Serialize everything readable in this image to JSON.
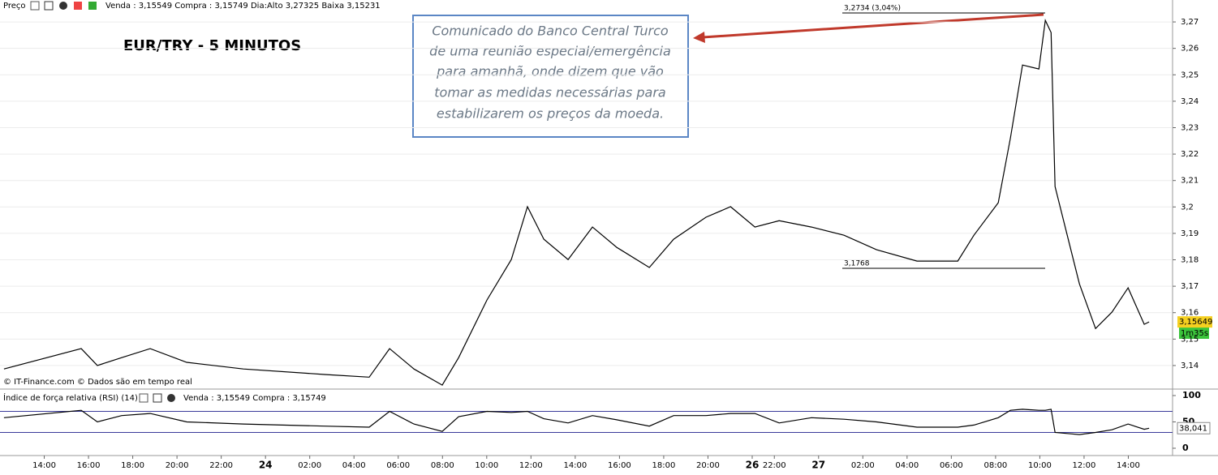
{
  "toolbar": {
    "label": "Preço",
    "quote": "Venda : 3,15549 Compra : 3,15749 Dia:Alto 3,27325 Baixa 3,15231"
  },
  "chart_title": "EUR/TRY - 5 MINUTOS",
  "callout": [
    "Comunicado do Banco Central Turco",
    "de uma reunião especial/emergência",
    "para amanhã, onde dizem que vão",
    "tomar as medidas necessárias para",
    "estabilizarem os preços da moeda."
  ],
  "copyright": "© IT-Finance.com  © Dados são em tempo real",
  "timer": "1m35s",
  "chart_data": [
    {
      "type": "line",
      "color": "#000000",
      "x": [
        0.18,
        3.67,
        4.4,
        5.5,
        6.79,
        8.44,
        11.0,
        14.67,
        16.69,
        17.61,
        18.71,
        19.99,
        20.73,
        22.01,
        23.11,
        23.84,
        24.58,
        25.68,
        26.78,
        27.88,
        29.35,
        30.45,
        31.91,
        33.02,
        34.12,
        35.22,
        36.68,
        38.15,
        39.62,
        41.45,
        43.29,
        44.02,
        45.12,
        45.67,
        46.22,
        46.96,
        47.25,
        47.51,
        47.69,
        48.24,
        48.79,
        49.52,
        50.26,
        50.99,
        51.72,
        51.94
      ],
      "values": [
        3.1387,
        3.1464,
        3.14,
        3.143,
        3.1464,
        3.1412,
        3.1387,
        3.1366,
        3.1356,
        3.1464,
        3.1387,
        3.1326,
        3.143,
        3.1648,
        3.1801,
        3.2001,
        3.1878,
        3.1801,
        3.1924,
        3.1847,
        3.1771,
        3.1878,
        3.1961,
        3.2001,
        3.1924,
        3.1948,
        3.1924,
        3.1893,
        3.1838,
        3.1795,
        3.1795,
        3.1893,
        3.2016,
        3.2261,
        3.2537,
        3.2522,
        3.2706,
        3.266,
        3.2077,
        3.1893,
        3.1709,
        3.154,
        3.1602,
        3.1694,
        3.1556,
        3.1565
      ],
      "xlim": [
        0,
        53
      ],
      "xticks": [
        {
          "value": 2,
          "label": "14:00"
        },
        {
          "value": 4,
          "label": "16:00"
        },
        {
          "value": 6,
          "label": "18:00"
        },
        {
          "value": 8,
          "label": "20:00"
        },
        {
          "value": 10,
          "label": "22:00"
        },
        {
          "value": 12,
          "label": "24"
        },
        {
          "value": 14,
          "label": "02:00"
        },
        {
          "value": 16,
          "label": "04:00"
        },
        {
          "value": 18,
          "label": "06:00"
        },
        {
          "value": 20,
          "label": "08:00"
        },
        {
          "value": 22,
          "label": "10:00"
        },
        {
          "value": 24,
          "label": "12:00"
        },
        {
          "value": 26,
          "label": "14:00"
        },
        {
          "value": 28,
          "label": "16:00"
        },
        {
          "value": 30,
          "label": "18:00"
        },
        {
          "value": 32,
          "label": "20:00"
        },
        {
          "value": 34,
          "label": "26"
        },
        {
          "value": 35,
          "label": "22:00"
        },
        {
          "value": 37,
          "label": "27"
        },
        {
          "value": 39,
          "label": "02:00"
        },
        {
          "value": 41,
          "label": "04:00"
        },
        {
          "value": 43,
          "label": "06:00"
        },
        {
          "value": 45,
          "label": "08:00"
        },
        {
          "value": 47,
          "label": "10:00"
        },
        {
          "value": 49,
          "label": "12:00"
        },
        {
          "value": 51,
          "label": "14:00"
        }
      ],
      "ylim": [
        3.1317,
        3.2783
      ],
      "yticks": [
        {
          "value": 3.14,
          "label": "3,14"
        },
        {
          "value": 3.15,
          "label": "3,15"
        },
        {
          "value": 3.16,
          "label": "3,16"
        },
        {
          "value": 3.17,
          "label": "3,17"
        },
        {
          "value": 3.18,
          "label": "3,18"
        },
        {
          "value": 3.19,
          "label": "3,19"
        },
        {
          "value": 3.2,
          "label": "3,2"
        },
        {
          "value": 3.21,
          "label": "3,21"
        },
        {
          "value": 3.22,
          "label": "3,22"
        },
        {
          "value": 3.23,
          "label": "3,23"
        },
        {
          "value": 3.24,
          "label": "3,24"
        },
        {
          "value": 3.25,
          "label": "3,25"
        },
        {
          "value": 3.26,
          "label": "3,26"
        },
        {
          "value": 3.27,
          "label": "3,27"
        }
      ],
      "grid": true,
      "levels": [
        {
          "value": 3.2734,
          "label": "3,2734 (3,04%)"
        },
        {
          "value": 3.1768,
          "label": "3,1768"
        }
      ],
      "last": {
        "value": 3.15649,
        "label": "3,15649"
      }
    },
    {
      "type": "line",
      "color": "#000000",
      "title": "Índice de força relativa (RSI) (14)",
      "quote": "Venda : 3,15549 Compra : 3,15749",
      "x": [
        0.18,
        3.67,
        4.4,
        5.5,
        6.79,
        8.44,
        11.0,
        14.67,
        16.69,
        17.61,
        18.71,
        19.99,
        20.73,
        22.01,
        23.11,
        23.84,
        24.58,
        25.68,
        26.78,
        27.88,
        29.35,
        30.45,
        31.91,
        33.02,
        34.12,
        35.22,
        36.68,
        38.15,
        39.62,
        41.45,
        43.29,
        44.02,
        45.12,
        45.67,
        46.22,
        46.96,
        47.25,
        47.51,
        47.69,
        48.24,
        48.79,
        49.52,
        50.26,
        50.99,
        51.72,
        51.94
      ],
      "values": [
        58,
        72,
        50,
        62,
        66,
        50,
        46,
        42,
        40,
        70,
        46,
        32,
        60,
        70,
        68,
        70,
        56,
        48,
        62,
        54,
        42,
        62,
        62,
        66,
        66,
        48,
        58,
        55,
        50,
        40,
        40,
        44,
        58,
        72,
        74,
        72,
        72,
        74,
        30,
        28,
        26,
        30,
        35,
        46,
        36,
        38.041
      ],
      "ylim": [
        -10.8,
        109.2
      ],
      "yticks": [
        0,
        50,
        100
      ],
      "levels": [
        70,
        30
      ],
      "last": {
        "value": 38.041,
        "label": "38,041"
      }
    }
  ]
}
